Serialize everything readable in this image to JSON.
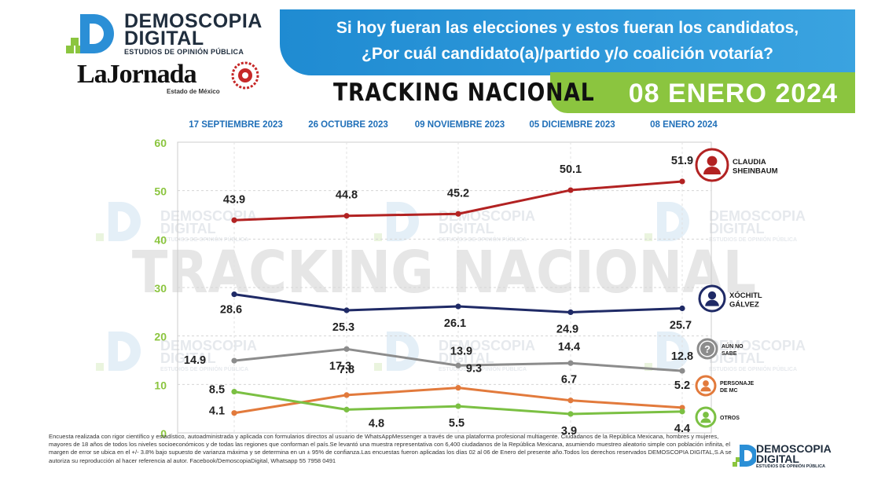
{
  "brand": {
    "line1": "DEMOSCOPIA",
    "line2": "DIGITAL",
    "tagline": "ESTUDIOS DE OPINIÓN PÚBLICA"
  },
  "partner": {
    "name": "LaJornada",
    "edition": "Estado de México"
  },
  "question": {
    "line1": "Si hoy fueran las elecciones y estos fueran los candidatos,",
    "line2": "¿Por cuál candidato(a)/partido y/o coalición votaría?"
  },
  "report_title": "TRACKING NACIONAL",
  "report_date": "08 ENERO 2024",
  "watermark": {
    "text": "TRACKING NACIONAL",
    "logo_line1": "DEMOSCOPIA",
    "logo_line2": "DIGITAL",
    "logo_tagline": "ESTUDIOS DE OPINIÓN PÚBLICA"
  },
  "colors": {
    "banner_blue": "#2196d8",
    "accent_green": "#8bc53f",
    "grid_green": "#8bc53f",
    "header_dates": "#1f6fb8"
  },
  "chart_data": {
    "type": "line",
    "x": [
      "17 SEPTIEMBRE 2023",
      "26 OCTUBRE 2023",
      "09 NOVIEMBRE 2023",
      "05 DICIEMBRE 2023",
      "08 ENERO 2024"
    ],
    "ylim": [
      0,
      60
    ],
    "yticks": [
      0,
      10,
      20,
      30,
      40,
      50,
      60
    ],
    "grid": true,
    "legend_position": "right",
    "series": [
      {
        "name": "CLAUDIA SHEINBAUM",
        "name_line1": "CLAUDIA",
        "name_line2": "SHEINBAUM",
        "color": "#b22222",
        "values": [
          43.9,
          44.8,
          45.2,
          50.1,
          51.9
        ],
        "icon": "candidate-photo-icon"
      },
      {
        "name": "XÓCHITL GÁLVEZ",
        "name_line1": "XÓCHITL",
        "name_line2": "GÁLVEZ",
        "color": "#1f2a66",
        "values": [
          28.6,
          25.3,
          26.1,
          24.9,
          25.7
        ],
        "icon": "candidate-photo-icon"
      },
      {
        "name": "AÚN NO SABE",
        "name_line1": "AÚN NO",
        "name_line2": "SABE",
        "color": "#8c8c8c",
        "values": [
          14.9,
          17.3,
          13.9,
          14.4,
          12.8
        ],
        "icon": "question-icon"
      },
      {
        "name": "PERSONAJE DE MC",
        "name_line1": "PERSONAJE",
        "name_line2": "DE MC",
        "color": "#e27a3c",
        "values": [
          4.1,
          7.8,
          9.3,
          6.7,
          5.2
        ],
        "icon": "person-icon"
      },
      {
        "name": "OTROS",
        "name_line1": "OTROS",
        "name_line2": "",
        "color": "#7bc043",
        "values": [
          8.5,
          4.8,
          5.5,
          3.9,
          4.4
        ],
        "icon": "person-icon"
      }
    ]
  },
  "footnote": "Encuesta realizada con rigor científico y estadístico, autoadministrada y aplicada con formularios directos al usuario de WhatsAppMessenger a través de una plataforma profesional multiagente. Ciudadanos de la República Mexicana, hombres y mujeres, mayores de 18 años de todos los niveles socioeconómicos y de todas las regiones que conforman el país.Se levantó una muestra representativa con 6,400 ciudadanos de la República Mexicana, asumiendo muestreo aleatorio simple con población infinita, el margen de error se ubica en el +/- 3.8% bajo supuesto de varianza máxima y se determina en un ± 95% de confianza.Las encuestas fueron aplicadas los días 02 al 06 de Enero del presente año.Todos los derechos reservados DEMOSCOPIA DIGITAL,S.A se autoriza su reproducción al hacer referencia al autor. Facebook/DemoscopiaDigital, Whatsapp 55 7958 0491"
}
